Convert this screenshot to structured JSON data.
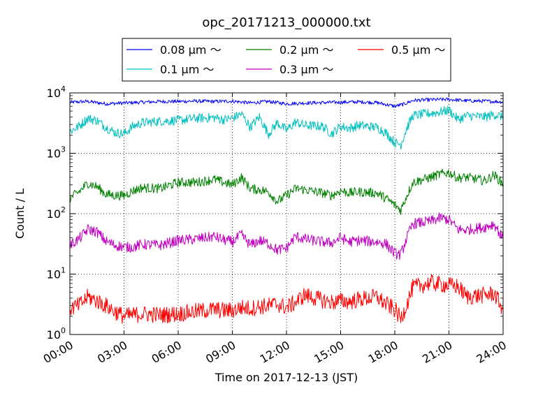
{
  "chart_data": {
    "type": "line",
    "title": "opc_20171213_000000.txt",
    "xlabel": "Time on 2017-12-13 (JST)",
    "ylabel": "Count / L",
    "yscale": "log",
    "ylim": [
      1,
      10000
    ],
    "xlim": [
      "00:00",
      "24:00"
    ],
    "xticks": [
      "00:00",
      "03:00",
      "06:00",
      "09:00",
      "12:00",
      "15:00",
      "18:00",
      "21:00",
      "24:00"
    ],
    "yticks": [
      {
        "base": "10",
        "exp": "0"
      },
      {
        "base": "10",
        "exp": "1"
      },
      {
        "base": "10",
        "exp": "2"
      },
      {
        "base": "10",
        "exp": "3"
      },
      {
        "base": "10",
        "exp": "4"
      }
    ],
    "grid": true,
    "legend_position": "top",
    "series": [
      {
        "name": "0.08 μm ～",
        "color": "#0000ff",
        "x": [
          "00:00",
          "01:00",
          "02:00",
          "03:00",
          "04:00",
          "05:00",
          "06:00",
          "07:00",
          "08:00",
          "09:00",
          "10:00",
          "11:00",
          "12:00",
          "13:00",
          "14:00",
          "15:00",
          "16:00",
          "17:00",
          "18:00",
          "18:30",
          "19:00",
          "20:00",
          "21:00",
          "22:00",
          "23:00",
          "24:00"
        ],
        "values": [
          7000,
          7200,
          6600,
          6800,
          7000,
          7200,
          7200,
          7300,
          7200,
          7300,
          6800,
          7200,
          6600,
          6800,
          6900,
          7000,
          7100,
          6900,
          6000,
          6500,
          7500,
          7700,
          7800,
          7400,
          7300,
          7100
        ]
      },
      {
        "name": "0.1 μm ～",
        "color": "#00bfbf",
        "x": [
          "00:00",
          "00:30",
          "01:00",
          "01:30",
          "02:00",
          "02:30",
          "03:00",
          "03:30",
          "04:00",
          "05:00",
          "06:00",
          "07:00",
          "08:00",
          "08:30",
          "09:00",
          "09:30",
          "10:00",
          "10:30",
          "11:00",
          "11:30",
          "12:00",
          "12:30",
          "13:00",
          "14:00",
          "14:30",
          "15:00",
          "15:30",
          "16:00",
          "17:00",
          "17:30",
          "18:00",
          "18:20",
          "18:40",
          "19:00",
          "20:00",
          "20:30",
          "21:00",
          "21:30",
          "22:00",
          "23:00",
          "23:30",
          "24:00"
        ],
        "values": [
          2300,
          2800,
          3800,
          3500,
          2700,
          2200,
          2100,
          2800,
          3200,
          3400,
          3500,
          3800,
          3900,
          3600,
          3800,
          4500,
          2700,
          4000,
          2100,
          3200,
          2400,
          3300,
          2900,
          2800,
          2100,
          2800,
          2600,
          2900,
          2700,
          2200,
          1500,
          1400,
          2600,
          4200,
          4600,
          4800,
          5200,
          3600,
          4200,
          4000,
          4400,
          4000
        ]
      },
      {
        "name": "0.2 μm ～",
        "color": "#008000",
        "x": [
          "00:00",
          "00:30",
          "01:00",
          "01:30",
          "02:00",
          "02:30",
          "03:00",
          "03:30",
          "04:00",
          "05:00",
          "06:00",
          "07:00",
          "08:00",
          "08:30",
          "09:00",
          "09:30",
          "10:00",
          "10:30",
          "11:00",
          "11:30",
          "12:00",
          "12:30",
          "13:00",
          "14:00",
          "14:30",
          "15:00",
          "15:30",
          "16:00",
          "17:00",
          "17:30",
          "18:00",
          "18:20",
          "18:40",
          "19:00",
          "20:00",
          "20:30",
          "21:00",
          "21:30",
          "22:00",
          "23:00",
          "23:30",
          "24:00"
        ],
        "values": [
          180,
          230,
          320,
          280,
          210,
          200,
          200,
          240,
          270,
          260,
          330,
          330,
          370,
          330,
          300,
          400,
          260,
          250,
          230,
          160,
          200,
          260,
          250,
          220,
          200,
          240,
          220,
          230,
          220,
          180,
          140,
          115,
          200,
          330,
          400,
          450,
          480,
          390,
          400,
          350,
          440,
          310
        ]
      },
      {
        "name": "0.3 μm ～",
        "color": "#bf00bf",
        "x": [
          "00:00",
          "00:30",
          "01:00",
          "01:30",
          "02:00",
          "02:30",
          "03:00",
          "03:30",
          "04:00",
          "05:00",
          "06:00",
          "07:00",
          "08:00",
          "08:30",
          "09:00",
          "09:30",
          "10:00",
          "10:30",
          "11:00",
          "11:30",
          "12:00",
          "12:30",
          "13:00",
          "14:00",
          "14:30",
          "15:00",
          "15:30",
          "16:00",
          "17:00",
          "17:30",
          "18:00",
          "18:20",
          "18:40",
          "19:00",
          "20:00",
          "20:30",
          "21:00",
          "21:30",
          "22:00",
          "23:00",
          "23:30",
          "24:00"
        ],
        "values": [
          30,
          38,
          55,
          50,
          35,
          30,
          28,
          28,
          31,
          30,
          36,
          38,
          42,
          37,
          34,
          45,
          30,
          36,
          32,
          25,
          27,
          42,
          38,
          34,
          33,
          40,
          34,
          36,
          34,
          32,
          22,
          21,
          40,
          68,
          75,
          85,
          80,
          55,
          54,
          60,
          68,
          38
        ]
      },
      {
        "name": "0.5 μm ～",
        "color": "#ff0000",
        "x": [
          "00:00",
          "00:30",
          "01:00",
          "01:30",
          "02:00",
          "02:30",
          "03:00",
          "03:30",
          "04:00",
          "05:00",
          "06:00",
          "07:00",
          "08:00",
          "08:30",
          "09:00",
          "09:30",
          "10:00",
          "10:30",
          "11:00",
          "11:30",
          "12:00",
          "12:30",
          "13:00",
          "14:00",
          "14:30",
          "15:00",
          "15:30",
          "16:00",
          "17:00",
          "17:30",
          "18:00",
          "18:20",
          "18:40",
          "19:00",
          "20:00",
          "20:30",
          "21:00",
          "21:30",
          "22:00",
          "23:00",
          "23:30",
          "24:00"
        ],
        "values": [
          2.7,
          3.0,
          4.2,
          3.6,
          3.0,
          2.4,
          2.0,
          2.1,
          2.2,
          2.1,
          2.2,
          2.4,
          2.6,
          2.5,
          2.5,
          2.8,
          2.7,
          2.9,
          3.0,
          3.2,
          2.8,
          3.4,
          4.5,
          3.7,
          3.4,
          3.6,
          3.5,
          3.8,
          4.2,
          3.2,
          2.6,
          1.8,
          3.2,
          6.0,
          7.2,
          6.8,
          6.5,
          6.2,
          4.2,
          4.5,
          4.8,
          2.6
        ]
      }
    ]
  }
}
